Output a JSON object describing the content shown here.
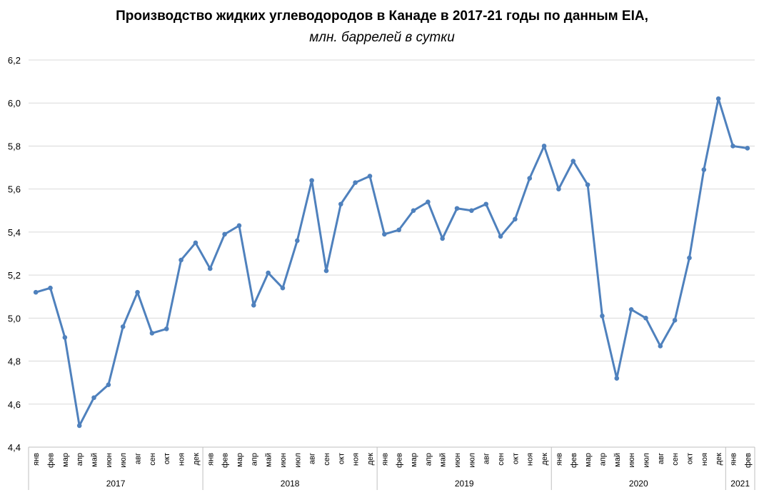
{
  "chart_data": {
    "type": "line",
    "title": "Производство жидких углеводородов в Канаде в 2017-21 годы по данным EIA,",
    "subtitle": "млн. баррелей в сутки",
    "ylim": [
      4.4,
      6.2
    ],
    "yticks": [
      "4,4",
      "4,6",
      "4,8",
      "5,0",
      "5,2",
      "5,4",
      "5,6",
      "5,8",
      "6,0",
      "6,2"
    ],
    "grid": true,
    "color": "#4f81bd",
    "years": [
      {
        "label": "2017",
        "months": 12
      },
      {
        "label": "2018",
        "months": 12
      },
      {
        "label": "2019",
        "months": 12
      },
      {
        "label": "2020",
        "months": 12
      },
      {
        "label": "2021",
        "months": 2
      }
    ],
    "categories": [
      "янв",
      "фев",
      "мар",
      "апр",
      "май",
      "июн",
      "июл",
      "авг",
      "сен",
      "окт",
      "ноя",
      "дек",
      "янв",
      "фев",
      "мар",
      "апр",
      "май",
      "июн",
      "июл",
      "авг",
      "сен",
      "окт",
      "ноя",
      "дек",
      "янв",
      "фев",
      "мар",
      "апр",
      "май",
      "июн",
      "июл",
      "авг",
      "сен",
      "окт",
      "ноя",
      "дек",
      "янв",
      "фев",
      "мар",
      "апр",
      "май",
      "июн",
      "июл",
      "авг",
      "сен",
      "окт",
      "ноя",
      "дек",
      "янв",
      "фев"
    ],
    "values": [
      5.12,
      5.14,
      4.91,
      4.5,
      4.63,
      4.69,
      4.96,
      5.12,
      4.93,
      4.95,
      5.27,
      5.35,
      5.23,
      5.39,
      5.43,
      5.06,
      5.21,
      5.14,
      5.36,
      5.64,
      5.22,
      5.53,
      5.63,
      5.66,
      5.39,
      5.41,
      5.5,
      5.54,
      5.37,
      5.51,
      5.5,
      5.53,
      5.38,
      5.46,
      5.65,
      5.8,
      5.6,
      5.73,
      5.62,
      5.01,
      4.72,
      5.04,
      5.0,
      4.87,
      4.99,
      5.28,
      5.69,
      6.02,
      5.8,
      5.79
    ]
  }
}
